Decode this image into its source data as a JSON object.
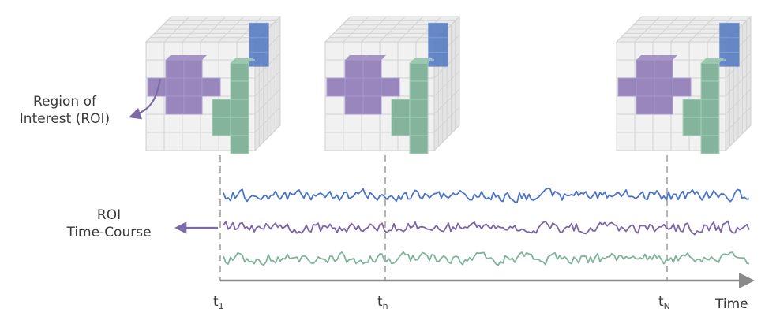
{
  "labels": {
    "region_line1": "Region of",
    "region_line2": "Interest (ROI)",
    "timecourse_line1": "ROI",
    "timecourse_line2": "Time-Course",
    "axis": "Time"
  },
  "ticks": [
    {
      "main": "t",
      "sub": "1"
    },
    {
      "main": "t",
      "sub": "n"
    },
    {
      "main": "t",
      "sub": "N"
    }
  ],
  "colors": {
    "blue": "#4a74c9",
    "purple": "#7b64a8",
    "green": "#7eb49a",
    "cube_purple_fill": "#8f7bb8",
    "cube_green_fill": "#7fb298",
    "cube_blue_fill": "#5077c0",
    "grid": "#d4d4d4",
    "axis": "#8a8a8a",
    "guide": "#b5b5b5",
    "arrow": "#7b6aa8"
  },
  "series": [
    {
      "color_key": "blue"
    },
    {
      "color_key": "purple"
    },
    {
      "color_key": "green"
    }
  ]
}
